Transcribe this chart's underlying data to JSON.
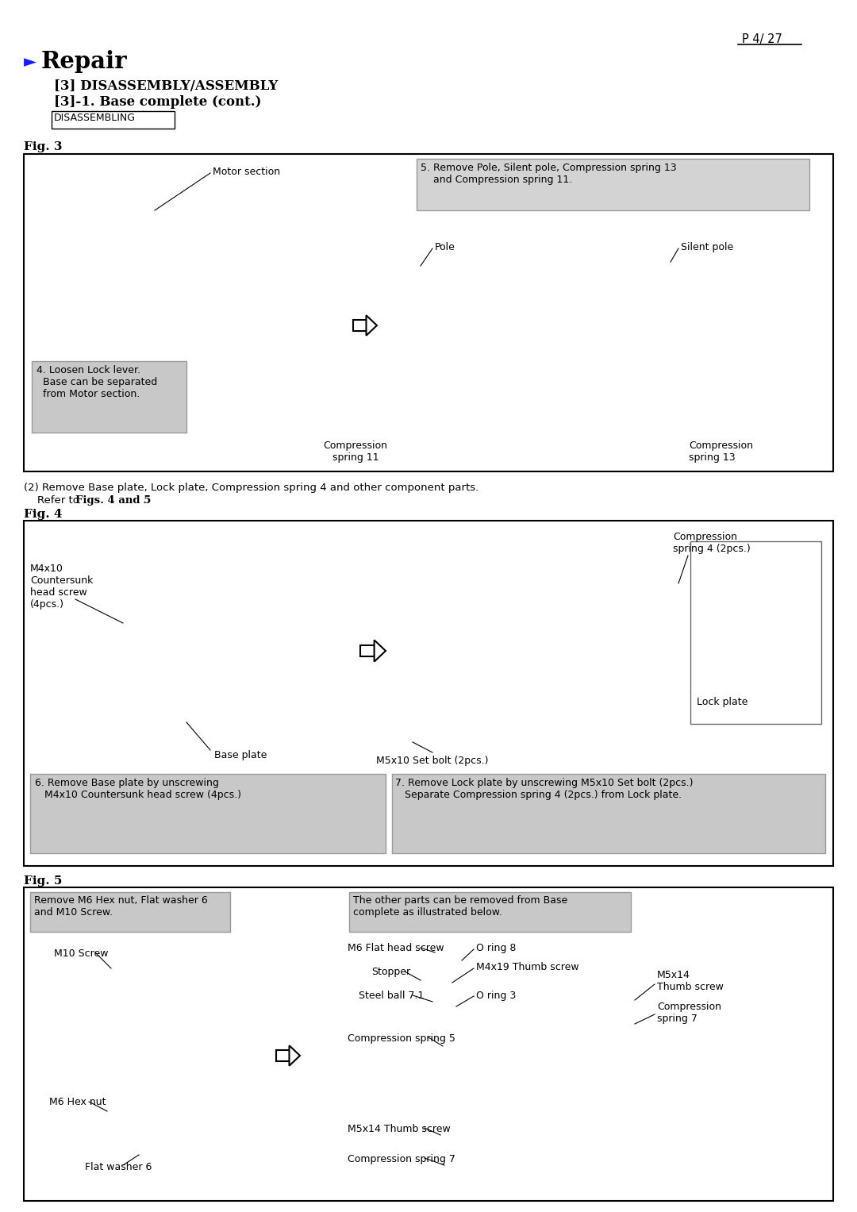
{
  "page_number": "P 4/ 27",
  "title_arrow": "►",
  "title_text": "Repair",
  "subtitle1": "[3] DISASSEMBLY/ASSEMBLY",
  "subtitle2": "[3]-1. Base complete (cont.)",
  "disassembling_label": "DISASSEMBLING",
  "fig3_label": "Fig. 3",
  "fig4_label": "Fig. 4",
  "fig5_label": "Fig. 5",
  "fig3_note1": "Motor section",
  "fig3_step5_box": "5. Remove Pole, Silent pole, Compression spring 13\n    and Compression spring 11.",
  "fig3_pole": "Pole",
  "fig3_silent_pole": "Silent pole",
  "fig3_comp11": "Compression\nspring 11",
  "fig3_comp13": "Compression\nspring 13",
  "fig3_step4_box": "4. Loosen Lock lever.\n  Base can be separated\n  from Motor section.",
  "para2": "(2) Remove Base plate, Lock plate, Compression spring 4 and other component parts.",
  "para2b": "    Refer to ",
  "para2b_bold": "Figs. 4 and 5",
  "para2b_end": ".",
  "fig4_m4x10": "M4x10\nCountersunk\nhead screw\n(4pcs.)",
  "fig4_base_plate": "Base plate",
  "fig4_comp4": "Compression\nspring 4 (2pcs.)",
  "fig4_lock_plate": "Lock plate",
  "fig4_m5x10": "M5x10 Set bolt (2pcs.)",
  "fig4_step6_box": "6. Remove Base plate by unscrewing\n   M4x10 Countersunk head screw (4pcs.)",
  "fig4_step7_box": "7. Remove Lock plate by unscrewing M5x10 Set bolt (2pcs.)\n   Separate Compression spring 4 (2pcs.) from Lock plate.",
  "fig5_remove_box": "Remove M6 Hex nut, Flat washer 6\nand M10 Screw.",
  "fig5_other_box": "The other parts can be removed from Base\ncomplete as illustrated below.",
  "fig5_m10screw": "M10 Screw",
  "fig5_m6flathead": "M6 Flat head screw",
  "fig5_oring8": "O ring 8",
  "fig5_stopper": "Stopper",
  "fig5_m4x19": "M4x19 Thumb screw",
  "fig5_steelball": "Steel ball 7.1",
  "fig5_oring3": "O ring 3",
  "fig5_m5x14_a": "M5x14\nThumb screw",
  "fig5_comp5": "Compression spring 5",
  "fig5_comp7a": "Compression\nspring 7",
  "fig5_m6hexnut": "M6 Hex nut",
  "fig5_m5x14thumb": "M5x14 Thumb screw",
  "fig5_comp7b": "Compression spring 7",
  "fig5_flatwasher": "Flat washer 6",
  "bg_color": "#ffffff",
  "box_fill_fig3_step5": "#d3d3d3",
  "box_fill_fig3_step4": "#c8c8c8",
  "box_fill_fig4_step6": "#c8c8c8",
  "box_fill_fig4_step7": "#c8c8c8",
  "box_fill_fig5_remove": "#c8c8c8",
  "box_fill_fig5_other": "#c8c8c8"
}
